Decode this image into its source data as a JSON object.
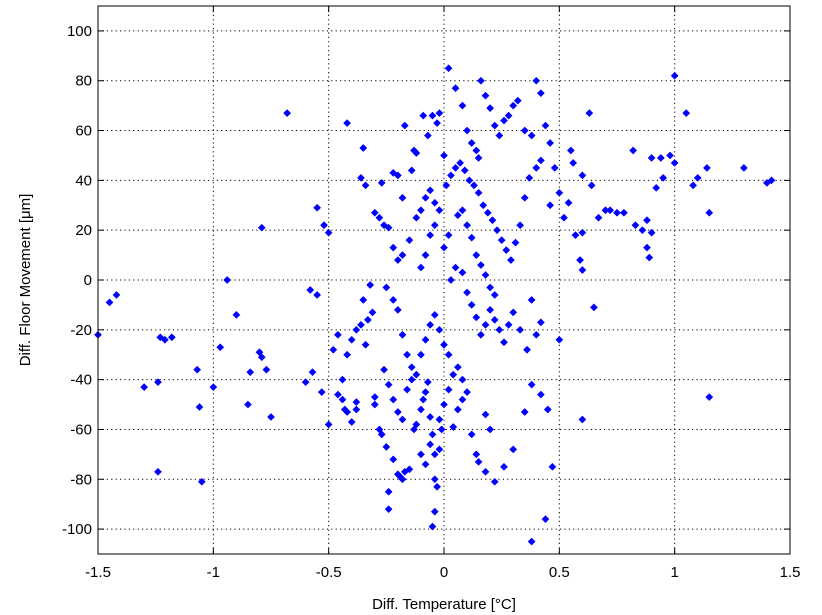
{
  "chart_data": {
    "type": "scatter",
    "title": "",
    "xlabel": "Diff. Temperature [°C]",
    "ylabel": "Diff. Floor Movement [μm]",
    "xlim": [
      -1.5,
      1.5
    ],
    "ylim": [
      -110,
      110
    ],
    "xticks": [
      -1.5,
      -1,
      -0.5,
      0,
      0.5,
      1,
      1.5
    ],
    "xtick_labels": [
      "-1.5",
      "-1",
      "-0.5",
      "0",
      "0.5",
      "1",
      "1.5"
    ],
    "yticks": [
      -100,
      -80,
      -60,
      -40,
      -20,
      0,
      20,
      40,
      60,
      80,
      100
    ],
    "ytick_labels": [
      "-100",
      "-80",
      "-60",
      "-40",
      "-20",
      "0",
      "20",
      "40",
      "60",
      "80",
      "100"
    ],
    "grid": true,
    "marker": "diamond",
    "color": "#0000ff",
    "points": [
      [
        -1.5,
        -22
      ],
      [
        -1.45,
        -9
      ],
      [
        -1.42,
        -6
      ],
      [
        -1.3,
        -43
      ],
      [
        -1.24,
        -41
      ],
      [
        -1.23,
        -23
      ],
      [
        -1.21,
        -24
      ],
      [
        -1.18,
        -23
      ],
      [
        -1.24,
        -77
      ],
      [
        -1.05,
        -81
      ],
      [
        -1.06,
        -51
      ],
      [
        -1.07,
        -36
      ],
      [
        -1.0,
        -43
      ],
      [
        -0.97,
        -27
      ],
      [
        -0.94,
        0
      ],
      [
        -0.9,
        -14
      ],
      [
        -0.85,
        -50
      ],
      [
        -0.84,
        -37
      ],
      [
        -0.8,
        -29
      ],
      [
        -0.79,
        -31
      ],
      [
        -0.77,
        -36
      ],
      [
        -0.75,
        -55
      ],
      [
        -0.79,
        21
      ],
      [
        -0.68,
        67
      ],
      [
        -0.6,
        -41
      ],
      [
        -0.58,
        -4
      ],
      [
        -0.55,
        -6
      ],
      [
        -0.57,
        -37
      ],
      [
        -0.53,
        -45
      ],
      [
        -0.5,
        -58
      ],
      [
        -0.55,
        29
      ],
      [
        -0.52,
        22
      ],
      [
        -0.5,
        19
      ],
      [
        -0.48,
        -28
      ],
      [
        -0.46,
        -22
      ],
      [
        -0.44,
        -48
      ],
      [
        -0.43,
        -52
      ],
      [
        -0.42,
        -53
      ],
      [
        -0.4,
        -57
      ],
      [
        -0.38,
        -52
      ],
      [
        -0.38,
        -49
      ],
      [
        -0.36,
        -18
      ],
      [
        -0.34,
        -26
      ],
      [
        -0.33,
        -16
      ],
      [
        -0.31,
        -13
      ],
      [
        -0.3,
        -47
      ],
      [
        -0.3,
        -50
      ],
      [
        -0.28,
        -60
      ],
      [
        -0.27,
        -62
      ],
      [
        -0.25,
        -67
      ],
      [
        -0.24,
        -85
      ],
      [
        -0.24,
        -92
      ],
      [
        -0.22,
        -72
      ],
      [
        -0.2,
        -78
      ],
      [
        -0.19,
        -79
      ],
      [
        -0.18,
        -80
      ],
      [
        -0.17,
        -77
      ],
      [
        -0.15,
        -76
      ],
      [
        -0.13,
        -60
      ],
      [
        -0.12,
        -58
      ],
      [
        -0.1,
        -52
      ],
      [
        -0.09,
        -48
      ],
      [
        -0.08,
        -45
      ],
      [
        -0.07,
        -41
      ],
      [
        -0.06,
        -55
      ],
      [
        -0.05,
        -62
      ],
      [
        -0.04,
        -70
      ],
      [
        -0.04,
        -80
      ],
      [
        -0.03,
        -83
      ],
      [
        -0.04,
        -93
      ],
      [
        -0.05,
        -99
      ],
      [
        -0.02,
        -68
      ],
      [
        -0.01,
        -60
      ],
      [
        0.0,
        -50
      ],
      [
        0.02,
        -44
      ],
      [
        0.04,
        -38
      ],
      [
        0.06,
        -35
      ],
      [
        0.08,
        -40
      ],
      [
        0.1,
        -45
      ],
      [
        0.12,
        -62
      ],
      [
        0.14,
        -70
      ],
      [
        0.15,
        -73
      ],
      [
        0.18,
        -77
      ],
      [
        0.22,
        -81
      ],
      [
        0.26,
        -75
      ],
      [
        0.3,
        -68
      ],
      [
        0.35,
        -53
      ],
      [
        0.38,
        -42
      ],
      [
        0.42,
        -46
      ],
      [
        0.45,
        -52
      ],
      [
        0.47,
        -75
      ],
      [
        0.44,
        -96
      ],
      [
        0.38,
        -105
      ],
      [
        0.5,
        -24
      ],
      [
        0.6,
        -56
      ],
      [
        0.65,
        -11
      ],
      [
        0.6,
        4
      ],
      [
        0.59,
        8
      ],
      [
        0.6,
        19
      ],
      [
        0.57,
        18
      ],
      [
        0.63,
        67
      ],
      [
        0.55,
        52
      ],
      [
        0.56,
        47
      ],
      [
        0.6,
        42
      ],
      [
        0.64,
        38
      ],
      [
        0.67,
        25
      ],
      [
        0.7,
        28
      ],
      [
        0.72,
        28
      ],
      [
        0.75,
        27
      ],
      [
        0.78,
        27
      ],
      [
        0.82,
        52
      ],
      [
        0.83,
        22
      ],
      [
        0.86,
        20
      ],
      [
        0.88,
        24
      ],
      [
        0.88,
        13
      ],
      [
        0.89,
        9
      ],
      [
        0.9,
        19
      ],
      [
        0.92,
        37
      ],
      [
        0.9,
        49
      ],
      [
        0.94,
        49
      ],
      [
        0.95,
        41
      ],
      [
        0.98,
        50
      ],
      [
        1.0,
        47
      ],
      [
        1.0,
        82
      ],
      [
        1.05,
        67
      ],
      [
        1.08,
        38
      ],
      [
        1.1,
        41
      ],
      [
        1.14,
        45
      ],
      [
        1.15,
        27
      ],
      [
        1.15,
        -47
      ],
      [
        1.3,
        45
      ],
      [
        1.4,
        39
      ],
      [
        1.42,
        40
      ],
      [
        -0.42,
        63
      ],
      [
        -0.35,
        53
      ],
      [
        -0.36,
        41
      ],
      [
        -0.34,
        38
      ],
      [
        -0.27,
        39
      ],
      [
        -0.22,
        43
      ],
      [
        -0.2,
        42
      ],
      [
        -0.18,
        33
      ],
      [
        -0.14,
        44
      ],
      [
        -0.12,
        51
      ],
      [
        -0.13,
        52
      ],
      [
        -0.17,
        62
      ],
      [
        -0.09,
        66
      ],
      [
        -0.07,
        58
      ],
      [
        -0.05,
        66
      ],
      [
        -0.03,
        63
      ],
      [
        -0.02,
        67
      ],
      [
        0.0,
        50
      ],
      [
        0.02,
        85
      ],
      [
        0.05,
        77
      ],
      [
        0.08,
        70
      ],
      [
        0.1,
        60
      ],
      [
        0.12,
        55
      ],
      [
        0.14,
        52
      ],
      [
        0.15,
        49
      ],
      [
        0.16,
        80
      ],
      [
        0.18,
        74
      ],
      [
        0.2,
        69
      ],
      [
        0.22,
        62
      ],
      [
        0.24,
        58
      ],
      [
        0.26,
        64
      ],
      [
        0.28,
        66
      ],
      [
        0.3,
        70
      ],
      [
        0.32,
        72
      ],
      [
        0.35,
        60
      ],
      [
        0.38,
        58
      ],
      [
        0.4,
        80
      ],
      [
        0.42,
        75
      ],
      [
        0.44,
        62
      ],
      [
        0.46,
        55
      ],
      [
        0.48,
        45
      ],
      [
        0.46,
        30
      ],
      [
        0.5,
        35
      ],
      [
        0.52,
        25
      ],
      [
        0.54,
        31
      ],
      [
        -0.3,
        27
      ],
      [
        -0.28,
        25
      ],
      [
        -0.26,
        22
      ],
      [
        -0.24,
        21
      ],
      [
        -0.22,
        13
      ],
      [
        -0.2,
        8
      ],
      [
        -0.18,
        10
      ],
      [
        -0.15,
        16
      ],
      [
        -0.12,
        25
      ],
      [
        -0.1,
        28
      ],
      [
        -0.08,
        33
      ],
      [
        -0.06,
        36
      ],
      [
        -0.04,
        31
      ],
      [
        -0.02,
        28
      ],
      [
        0.01,
        38
      ],
      [
        0.03,
        42
      ],
      [
        0.05,
        45
      ],
      [
        0.07,
        47
      ],
      [
        0.09,
        44
      ],
      [
        0.11,
        40
      ],
      [
        0.13,
        38
      ],
      [
        0.15,
        35
      ],
      [
        0.17,
        30
      ],
      [
        0.19,
        27
      ],
      [
        0.21,
        24
      ],
      [
        0.23,
        20
      ],
      [
        0.25,
        16
      ],
      [
        0.27,
        12
      ],
      [
        0.29,
        8
      ],
      [
        0.31,
        15
      ],
      [
        0.33,
        22
      ],
      [
        0.35,
        33
      ],
      [
        0.37,
        41
      ],
      [
        0.4,
        45
      ],
      [
        0.42,
        48
      ],
      [
        0.03,
        0
      ],
      [
        0.05,
        5
      ],
      [
        0.08,
        3
      ],
      [
        0.1,
        -5
      ],
      [
        0.12,
        -10
      ],
      [
        0.14,
        -15
      ],
      [
        0.16,
        -22
      ],
      [
        0.18,
        -18
      ],
      [
        0.2,
        -12
      ],
      [
        0.22,
        -16
      ],
      [
        0.24,
        -20
      ],
      [
        0.26,
        -25
      ],
      [
        0.28,
        -18
      ],
      [
        0.3,
        -13
      ],
      [
        0.33,
        -20
      ],
      [
        0.36,
        -28
      ],
      [
        0.4,
        -22
      ],
      [
        0.42,
        -17
      ],
      [
        0.38,
        -8
      ],
      [
        -0.25,
        -3
      ],
      [
        -0.22,
        -8
      ],
      [
        -0.2,
        -12
      ],
      [
        -0.18,
        -22
      ],
      [
        -0.16,
        -30
      ],
      [
        -0.14,
        -35
      ],
      [
        -0.12,
        -38
      ],
      [
        -0.1,
        -30
      ],
      [
        -0.08,
        -24
      ],
      [
        -0.06,
        -18
      ],
      [
        -0.04,
        -14
      ],
      [
        -0.02,
        -20
      ],
      [
        0.0,
        -26
      ],
      [
        0.02,
        -30
      ],
      [
        -0.32,
        -2
      ],
      [
        -0.35,
        -8
      ],
      [
        -0.38,
        -20
      ],
      [
        -0.4,
        -24
      ],
      [
        -0.42,
        -30
      ],
      [
        -0.44,
        -40
      ],
      [
        -0.46,
        -46
      ],
      [
        -0.26,
        -36
      ],
      [
        -0.24,
        -42
      ],
      [
        -0.22,
        -48
      ],
      [
        -0.2,
        -53
      ],
      [
        -0.18,
        -56
      ],
      [
        -0.16,
        -44
      ],
      [
        -0.14,
        -40
      ],
      [
        -0.1,
        -70
      ],
      [
        -0.08,
        -74
      ],
      [
        -0.06,
        -66
      ],
      [
        -0.02,
        -56
      ],
      [
        0.04,
        -59
      ],
      [
        0.06,
        -52
      ],
      [
        0.08,
        -48
      ],
      [
        0.18,
        -54
      ],
      [
        0.2,
        -60
      ],
      [
        -0.1,
        5
      ],
      [
        -0.08,
        10
      ],
      [
        -0.06,
        18
      ],
      [
        -0.04,
        22
      ],
      [
        0.0,
        13
      ],
      [
        0.02,
        18
      ],
      [
        0.06,
        26
      ],
      [
        0.08,
        28
      ],
      [
        0.1,
        22
      ],
      [
        0.12,
        17
      ],
      [
        0.14,
        10
      ],
      [
        0.16,
        6
      ],
      [
        0.18,
        2
      ],
      [
        0.2,
        -3
      ],
      [
        0.22,
        -6
      ]
    ]
  }
}
